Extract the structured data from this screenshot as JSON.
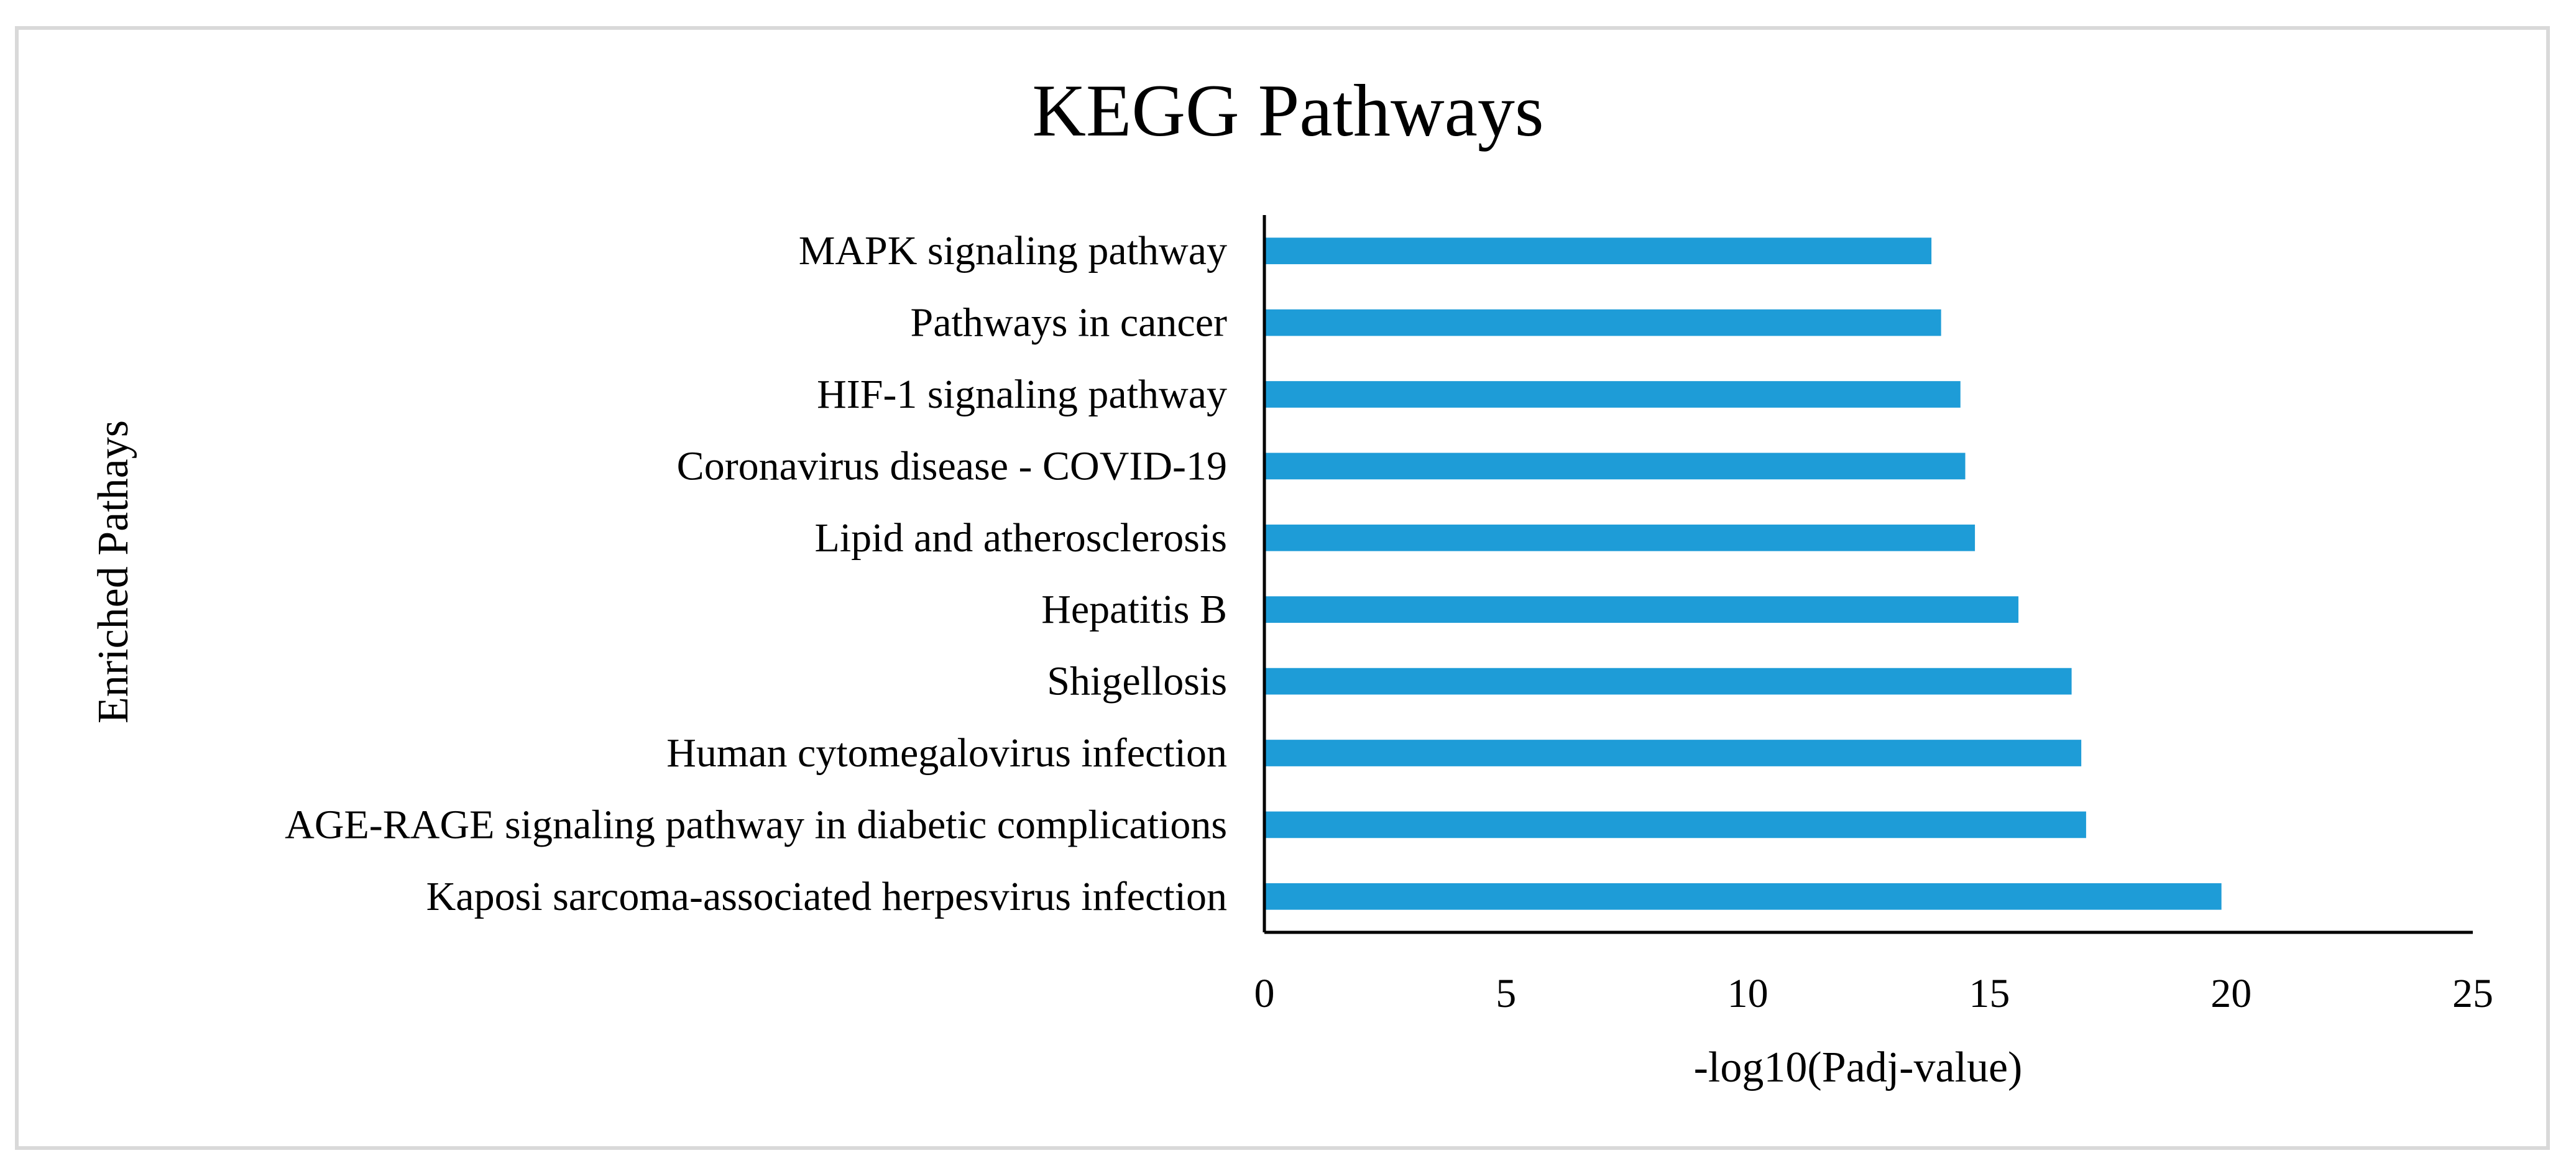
{
  "chart_data": {
    "type": "bar",
    "orientation": "horizontal",
    "title": "KEGG Pathways",
    "xlabel": "-log10(Padj-value)",
    "ylabel": "Enriched Pathays",
    "xlim": [
      0,
      25
    ],
    "xticks": [
      0,
      5,
      10,
      15,
      20,
      25
    ],
    "grid": false,
    "bar_color": "#1e9cd7",
    "categories": [
      "MAPK signaling pathway",
      "Pathways in cancer",
      "HIF-1 signaling pathway",
      "Coronavirus disease - COVID-19",
      "Lipid and atherosclerosis",
      "Hepatitis B",
      "Shigellosis",
      "Human cytomegalovirus infection",
      "AGE-RAGE signaling pathway in diabetic complications",
      "Kaposi sarcoma-associated herpesvirus infection"
    ],
    "values": [
      13.8,
      14.0,
      14.4,
      14.5,
      14.7,
      15.6,
      16.7,
      16.9,
      17.0,
      19.8
    ]
  }
}
